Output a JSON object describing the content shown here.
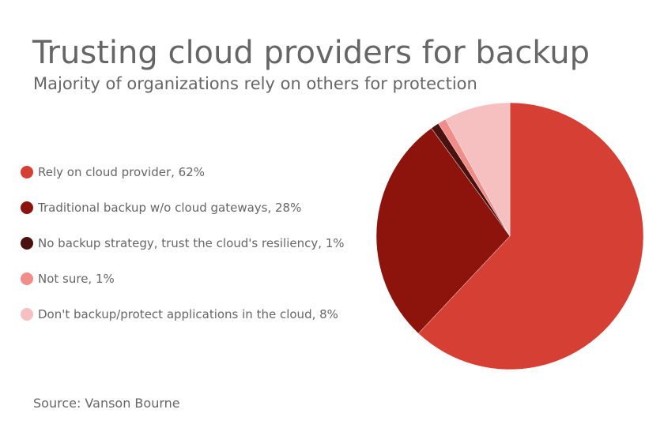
{
  "title": "Trusting cloud providers for backup",
  "subtitle": "Majority of organizations rely on others for protection",
  "source": "Source: Vanson Bourne",
  "chart_data": {
    "type": "pie",
    "title": "Trusting cloud providers for backup",
    "subtitle": "Majority of organizations rely on others for protection",
    "legend_position": "left",
    "slices": [
      {
        "label": "Rely on cloud provider, 62%",
        "value": 62,
        "color": "#d63f33"
      },
      {
        "label": "Traditional backup w/o cloud gateways, 28%",
        "value": 28,
        "color": "#8c140d"
      },
      {
        "label": "No backup strategy, trust the cloud's resiliency, 1%",
        "value": 1,
        "color": "#4a120e"
      },
      {
        "label": "Not sure, 1%",
        "value": 1,
        "color": "#f28c88"
      },
      {
        "label": "Don't backup/protect applications in the cloud, 8%",
        "value": 8,
        "color": "#f6c0c1"
      }
    ]
  }
}
